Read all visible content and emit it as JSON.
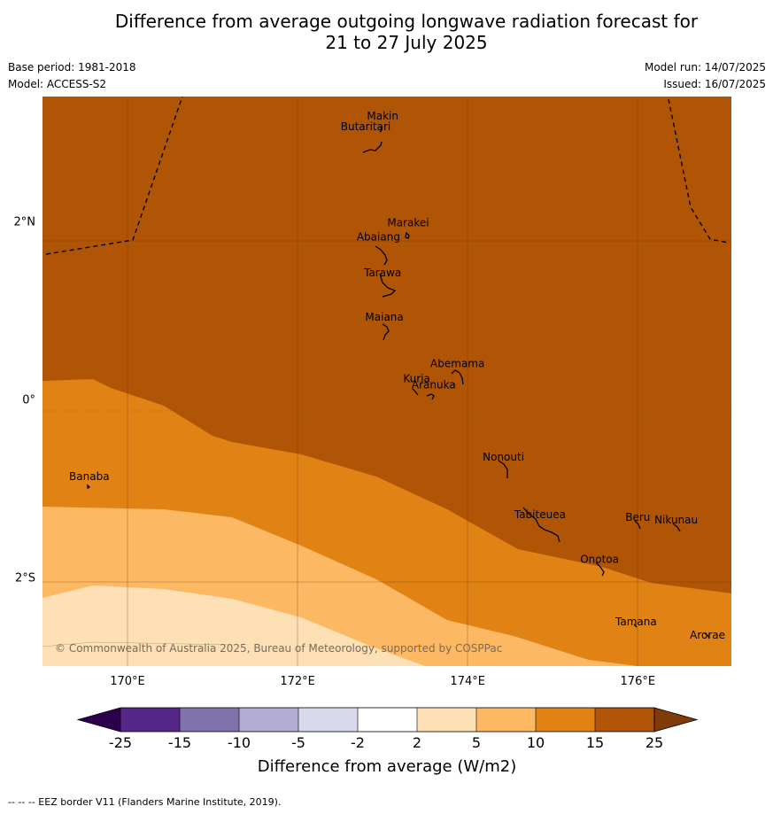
{
  "title": {
    "line1": "Difference from average outgoing longwave radiation forecast for",
    "line2": "21 to 27 July 2025"
  },
  "meta": {
    "base_period": "Base period: 1981-2018",
    "model": "Model: ACCESS-S2",
    "model_run": "Model run: 14/07/2025",
    "issued": "Issued: 16/07/2025"
  },
  "map": {
    "lon_range": [
      169,
      177.1
    ],
    "lat_range": [
      -3.0,
      3.4
    ],
    "lon_ticks": [
      {
        "value": 170,
        "label": "170°E"
      },
      {
        "value": 172,
        "label": "172°E"
      },
      {
        "value": 174,
        "label": "174°E"
      },
      {
        "value": 176,
        "label": "176°E"
      }
    ],
    "lat_ticks": [
      {
        "value": 2,
        "label": "2°N"
      },
      {
        "value": 0,
        "label": "0°"
      },
      {
        "value": -2,
        "label": "2°S"
      }
    ],
    "places": [
      {
        "name": "Makin",
        "lon": 173.0,
        "lat": 3.18
      },
      {
        "name": "Butaritari",
        "lon": 172.8,
        "lat": 3.06
      },
      {
        "name": "Marakei",
        "lon": 173.3,
        "lat": 1.98
      },
      {
        "name": "Abaiang",
        "lon": 172.95,
        "lat": 1.82
      },
      {
        "name": "Tarawa",
        "lon": 173.0,
        "lat": 1.42
      },
      {
        "name": "Maiana",
        "lon": 173.02,
        "lat": 0.92
      },
      {
        "name": "Abemama",
        "lon": 173.88,
        "lat": 0.4
      },
      {
        "name": "Kuria",
        "lon": 173.4,
        "lat": 0.23
      },
      {
        "name": "Aranuka",
        "lon": 173.6,
        "lat": 0.16
      },
      {
        "name": "Nonouti",
        "lon": 174.42,
        "lat": -0.65
      },
      {
        "name": "Banaba",
        "lon": 169.55,
        "lat": -0.87
      },
      {
        "name": "Tabiteuea",
        "lon": 174.85,
        "lat": -1.3
      },
      {
        "name": "Beru",
        "lon": 176.0,
        "lat": -1.33
      },
      {
        "name": "Nikunau",
        "lon": 176.45,
        "lat": -1.36
      },
      {
        "name": "Onotoa",
        "lon": 175.55,
        "lat": -1.8
      },
      {
        "name": "Tamana",
        "lon": 175.98,
        "lat": -2.5
      },
      {
        "name": "Arorae",
        "lon": 176.82,
        "lat": -2.65
      }
    ],
    "copyright": "© Commonwealth of Australia 2025, Bureau of Meteorology, supported by COSPPac"
  },
  "colors": {
    "band_gt15": "#b05505",
    "band_10_15": "#e08214",
    "band_5_10": "#fdb863",
    "band_2_5": "#fee0b6",
    "band_m2_2": "#ffffff",
    "band_m5_m2": "#d8daeb",
    "band_m10_m5": "#b2abd2",
    "band_m15_m10": "#8073ac",
    "band_m25_m15": "#542788",
    "low_end": "#2d004b",
    "high_end": "#7f3b08"
  },
  "colorbar": {
    "ticks": [
      "-25",
      "-15",
      "-10",
      "-5",
      "-2",
      "2",
      "5",
      "10",
      "15",
      "25"
    ],
    "title": "Difference from average (W/m2)"
  },
  "footer": "--  --  -- EEZ border V11 (Flanders Marine Institute, 2019)."
}
